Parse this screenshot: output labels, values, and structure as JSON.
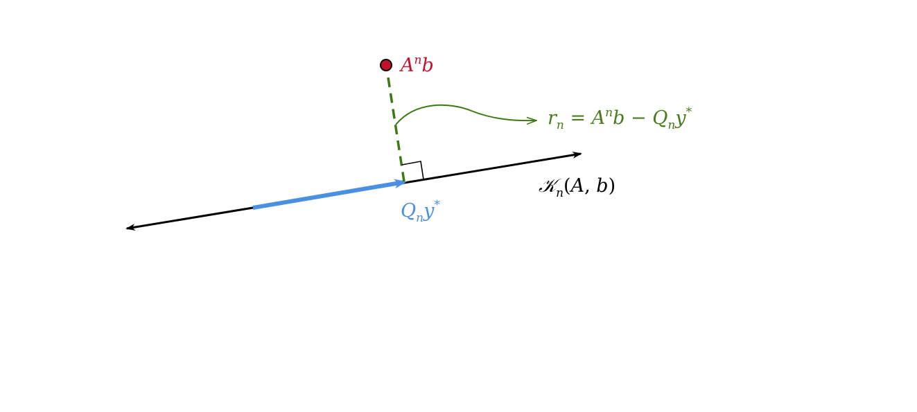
{
  "colors": {
    "background": "#ffffff",
    "axis": "#000000",
    "projection": "#4a90e2",
    "point_fill": "#c0112b",
    "point_label": "#c8102e",
    "residual": "#3a7a10",
    "residual_label": "#4a7a1c"
  },
  "labels": {
    "point": {
      "base": "A",
      "sup": "n",
      "tail": "b"
    },
    "residual": {
      "r": "r",
      "r_sub": "n",
      "eq": " = ",
      "A": "A",
      "A_sup": "n",
      "b": "b",
      "minus": " − ",
      "Q": "Q",
      "Q_sub": "n",
      "y": "y",
      "y_sup": "*"
    },
    "subspace": {
      "K": "𝒦",
      "K_sub": "n",
      "open": "(",
      "A": "A",
      "comma": ", ",
      "b": "b",
      "close": ")"
    },
    "projection": {
      "Q": "Q",
      "Q_sub": "n",
      "y": "y",
      "y_sup": "*"
    }
  }
}
